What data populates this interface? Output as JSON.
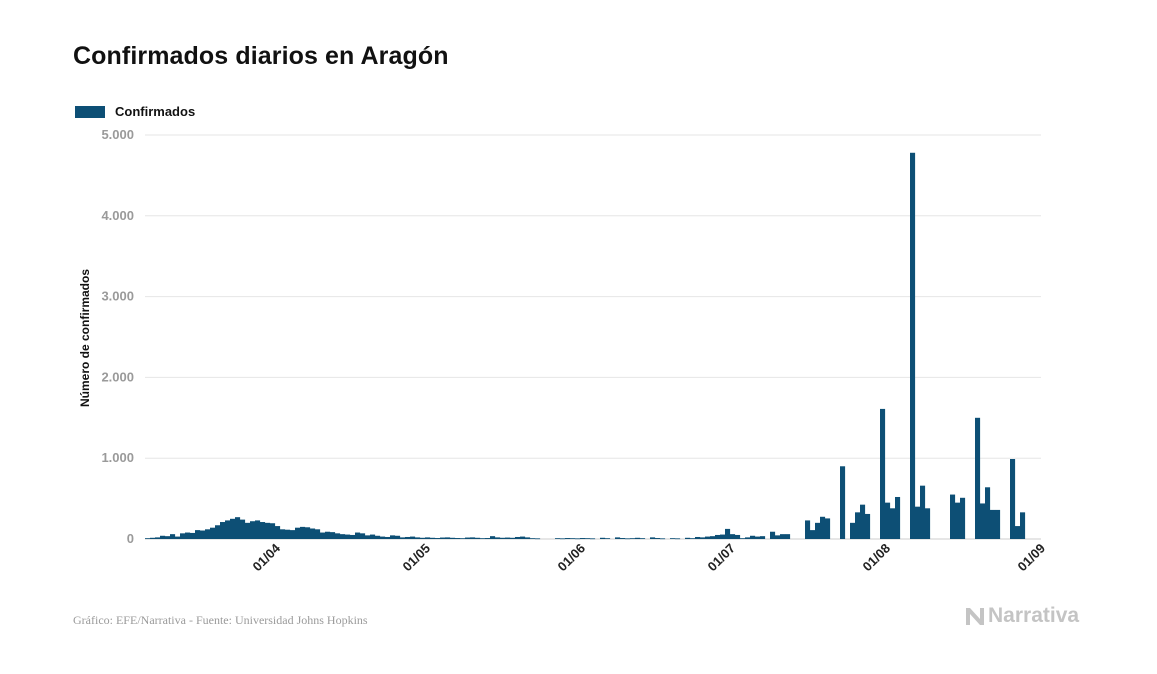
{
  "title": "Confirmados diarios en Aragón",
  "legend": {
    "label": "Confirmados"
  },
  "footer": {
    "source": "Gráfico: EFE/Narrativa - Fuente: Universidad Johns Hopkins",
    "brand": "Narrativa"
  },
  "colors": {
    "bar": "#0d4f75",
    "grid": "#e6e6e6",
    "tick": "#9a9a9a",
    "brand": "#c4c4c4"
  },
  "chart_data": {
    "type": "bar",
    "title": "Confirmados diarios en Aragón",
    "xlabel": "",
    "ylabel": "Número de confirmados",
    "ylim": [
      0,
      5000
    ],
    "yticks": [
      0,
      1000,
      2000,
      3000,
      4000,
      5000
    ],
    "ytick_labels": [
      "0",
      "1.000",
      "2.000",
      "3.000",
      "4.000",
      "5.000"
    ],
    "xticks": [
      "01/04",
      "01/05",
      "01/06",
      "01/07",
      "01/08",
      "01/09"
    ],
    "x_start": "2020-03-06",
    "x_end": "2020-09-01",
    "grid": true,
    "legend_position": "top-left",
    "series": [
      {
        "name": "Confirmados",
        "points": [
          [
            "2020-03-06",
            10
          ],
          [
            "2020-03-07",
            15
          ],
          [
            "2020-03-08",
            20
          ],
          [
            "2020-03-09",
            40
          ],
          [
            "2020-03-10",
            35
          ],
          [
            "2020-03-11",
            60
          ],
          [
            "2020-03-12",
            30
          ],
          [
            "2020-03-13",
            70
          ],
          [
            "2020-03-14",
            80
          ],
          [
            "2020-03-15",
            75
          ],
          [
            "2020-03-16",
            110
          ],
          [
            "2020-03-17",
            105
          ],
          [
            "2020-03-18",
            120
          ],
          [
            "2020-03-19",
            140
          ],
          [
            "2020-03-20",
            170
          ],
          [
            "2020-03-21",
            210
          ],
          [
            "2020-03-22",
            230
          ],
          [
            "2020-03-23",
            250
          ],
          [
            "2020-03-24",
            270
          ],
          [
            "2020-03-25",
            240
          ],
          [
            "2020-03-26",
            200
          ],
          [
            "2020-03-27",
            220
          ],
          [
            "2020-03-28",
            230
          ],
          [
            "2020-03-29",
            210
          ],
          [
            "2020-03-30",
            200
          ],
          [
            "2020-03-31",
            195
          ],
          [
            "2020-04-01",
            160
          ],
          [
            "2020-04-02",
            120
          ],
          [
            "2020-04-03",
            115
          ],
          [
            "2020-04-04",
            110
          ],
          [
            "2020-04-05",
            140
          ],
          [
            "2020-04-06",
            150
          ],
          [
            "2020-04-07",
            145
          ],
          [
            "2020-04-08",
            130
          ],
          [
            "2020-04-09",
            120
          ],
          [
            "2020-04-10",
            80
          ],
          [
            "2020-04-11",
            90
          ],
          [
            "2020-04-12",
            85
          ],
          [
            "2020-04-13",
            70
          ],
          [
            "2020-04-14",
            60
          ],
          [
            "2020-04-15",
            55
          ],
          [
            "2020-04-16",
            50
          ],
          [
            "2020-04-17",
            80
          ],
          [
            "2020-04-18",
            70
          ],
          [
            "2020-04-19",
            45
          ],
          [
            "2020-04-20",
            55
          ],
          [
            "2020-04-21",
            40
          ],
          [
            "2020-04-22",
            30
          ],
          [
            "2020-04-23",
            25
          ],
          [
            "2020-04-24",
            45
          ],
          [
            "2020-04-25",
            40
          ],
          [
            "2020-04-26",
            20
          ],
          [
            "2020-04-27",
            25
          ],
          [
            "2020-04-28",
            30
          ],
          [
            "2020-04-29",
            20
          ],
          [
            "2020-04-30",
            15
          ],
          [
            "2020-05-01",
            20
          ],
          [
            "2020-05-02",
            15
          ],
          [
            "2020-05-03",
            12
          ],
          [
            "2020-05-04",
            18
          ],
          [
            "2020-05-05",
            20
          ],
          [
            "2020-05-06",
            15
          ],
          [
            "2020-05-07",
            12
          ],
          [
            "2020-05-08",
            10
          ],
          [
            "2020-05-09",
            18
          ],
          [
            "2020-05-10",
            20
          ],
          [
            "2020-05-11",
            15
          ],
          [
            "2020-05-12",
            10
          ],
          [
            "2020-05-13",
            12
          ],
          [
            "2020-05-14",
            35
          ],
          [
            "2020-05-15",
            20
          ],
          [
            "2020-05-16",
            15
          ],
          [
            "2020-05-17",
            18
          ],
          [
            "2020-05-18",
            15
          ],
          [
            "2020-05-19",
            25
          ],
          [
            "2020-05-20",
            30
          ],
          [
            "2020-05-21",
            20
          ],
          [
            "2020-05-22",
            10
          ],
          [
            "2020-05-23",
            8
          ],
          [
            "2020-05-27",
            10
          ],
          [
            "2020-05-28",
            8
          ],
          [
            "2020-05-29",
            12
          ],
          [
            "2020-05-30",
            10
          ],
          [
            "2020-05-31",
            8
          ],
          [
            "2020-06-01",
            12
          ],
          [
            "2020-06-02",
            10
          ],
          [
            "2020-06-03",
            8
          ],
          [
            "2020-06-05",
            15
          ],
          [
            "2020-06-06",
            10
          ],
          [
            "2020-06-08",
            20
          ],
          [
            "2020-06-09",
            12
          ],
          [
            "2020-06-10",
            8
          ],
          [
            "2020-06-11",
            10
          ],
          [
            "2020-06-12",
            15
          ],
          [
            "2020-06-13",
            10
          ],
          [
            "2020-06-15",
            20
          ],
          [
            "2020-06-16",
            12
          ],
          [
            "2020-06-17",
            8
          ],
          [
            "2020-06-19",
            10
          ],
          [
            "2020-06-20",
            8
          ],
          [
            "2020-06-22",
            15
          ],
          [
            "2020-06-23",
            10
          ],
          [
            "2020-06-24",
            25
          ],
          [
            "2020-06-25",
            20
          ],
          [
            "2020-06-26",
            30
          ],
          [
            "2020-06-27",
            35
          ],
          [
            "2020-06-28",
            50
          ],
          [
            "2020-06-29",
            55
          ],
          [
            "2020-06-30",
            125
          ],
          [
            "2020-07-01",
            60
          ],
          [
            "2020-07-02",
            50
          ],
          [
            "2020-07-03",
            10
          ],
          [
            "2020-07-04",
            20
          ],
          [
            "2020-07-05",
            40
          ],
          [
            "2020-07-06",
            30
          ],
          [
            "2020-07-07",
            35
          ],
          [
            "2020-07-09",
            90
          ],
          [
            "2020-07-10",
            45
          ],
          [
            "2020-07-11",
            60
          ],
          [
            "2020-07-12",
            60
          ],
          [
            "2020-07-16",
            230
          ],
          [
            "2020-07-17",
            110
          ],
          [
            "2020-07-18",
            200
          ],
          [
            "2020-07-19",
            275
          ],
          [
            "2020-07-20",
            255
          ],
          [
            "2020-07-23",
            900
          ],
          [
            "2020-07-25",
            200
          ],
          [
            "2020-07-26",
            330
          ],
          [
            "2020-07-27",
            425
          ],
          [
            "2020-07-28",
            310
          ],
          [
            "2020-07-31",
            1610
          ],
          [
            "2020-08-01",
            450
          ],
          [
            "2020-08-02",
            380
          ],
          [
            "2020-08-03",
            520
          ],
          [
            "2020-08-06",
            4780
          ],
          [
            "2020-08-07",
            400
          ],
          [
            "2020-08-08",
            660
          ],
          [
            "2020-08-09",
            380
          ],
          [
            "2020-08-14",
            550
          ],
          [
            "2020-08-15",
            450
          ],
          [
            "2020-08-16",
            510
          ],
          [
            "2020-08-19",
            1500
          ],
          [
            "2020-08-20",
            440
          ],
          [
            "2020-08-21",
            640
          ],
          [
            "2020-08-22",
            360
          ],
          [
            "2020-08-23",
            360
          ],
          [
            "2020-08-26",
            990
          ],
          [
            "2020-08-27",
            160
          ],
          [
            "2020-08-28",
            330
          ]
        ]
      }
    ]
  }
}
